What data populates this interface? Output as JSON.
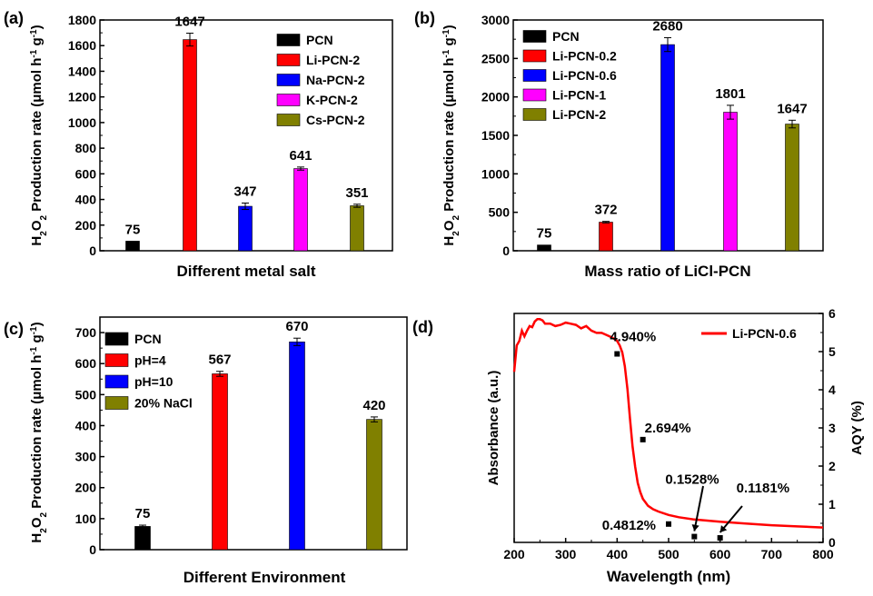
{
  "colors": {
    "black": "#000000",
    "red": "#ff0000",
    "blue": "#0000ff",
    "magenta": "#ff00ff",
    "olive": "#808000",
    "line": "#ff0000"
  },
  "chart_data": [
    {
      "panel": "(a)",
      "type": "bar",
      "title": "",
      "xlabel": "Different metal salt",
      "ylabel_parts": [
        "H",
        "2",
        "O",
        "2",
        " Production rate (μmol h",
        "-1",
        " g",
        "-1",
        ")"
      ],
      "ylim": [
        0,
        1800
      ],
      "yticks": [
        0,
        200,
        400,
        600,
        800,
        1000,
        1200,
        1400,
        1600,
        1800
      ],
      "categories": [
        "PCN",
        "Li-PCN-2",
        "Na-PCN-2",
        "K-PCN-2",
        "Cs-PCN-2"
      ],
      "values": [
        75,
        1647,
        347,
        641,
        351
      ],
      "errors": [
        0,
        50,
        25,
        12,
        12
      ],
      "value_labels": [
        "75",
        "1647",
        "347",
        "641",
        "351"
      ],
      "colors": [
        "#000000",
        "#ff0000",
        "#0000ff",
        "#ff00ff",
        "#808000"
      ],
      "legend": [
        "PCN",
        "Li-PCN-2",
        "Na-PCN-2",
        "K-PCN-2",
        "Cs-PCN-2"
      ],
      "legend_position": "top-right"
    },
    {
      "panel": "(b)",
      "type": "bar",
      "title": "",
      "xlabel": "Mass ratio of LiCl-PCN",
      "ylabel_parts": [
        "H",
        "2",
        "O",
        "2",
        " Production rate (μmol h",
        "-1",
        " g",
        "-1",
        ")"
      ],
      "ylim": [
        0,
        3000
      ],
      "yticks": [
        0,
        500,
        1000,
        1500,
        2000,
        2500,
        3000
      ],
      "categories": [
        "PCN",
        "Li-PCN-0.2",
        "Li-PCN-0.6",
        "Li-PCN-1",
        "Li-PCN-2"
      ],
      "values": [
        75,
        372,
        2680,
        1801,
        1647
      ],
      "errors": [
        0,
        10,
        90,
        90,
        50
      ],
      "value_labels": [
        "75",
        "372",
        "2680",
        "1801",
        "1647"
      ],
      "colors": [
        "#000000",
        "#ff0000",
        "#0000ff",
        "#ff00ff",
        "#808000"
      ],
      "legend": [
        "PCN",
        "Li-PCN-0.2",
        "Li-PCN-0.6",
        "Li-PCN-1",
        "Li-PCN-2"
      ],
      "legend_position": "top-left"
    },
    {
      "panel": "(c)",
      "type": "bar",
      "title": "",
      "xlabel": "Different Environment",
      "ylabel_parts": [
        "H",
        "2",
        "O",
        "2",
        " Production rate (μmol h",
        "-1",
        " g",
        "-1",
        ")"
      ],
      "ylim": [
        0,
        750
      ],
      "yticks": [
        0,
        100,
        200,
        300,
        400,
        500,
        600,
        700
      ],
      "categories": [
        "PCN",
        "pH=4",
        "pH=10",
        "20% NaCl"
      ],
      "values": [
        75,
        567,
        670,
        420
      ],
      "errors": [
        4,
        8,
        12,
        8
      ],
      "value_labels": [
        "75",
        "567",
        "670",
        "420"
      ],
      "colors": [
        "#000000",
        "#ff0000",
        "#0000ff",
        "#808000"
      ],
      "legend": [
        "PCN",
        "pH=4",
        "pH=10",
        "20% NaCl"
      ],
      "legend_position": "top-left"
    },
    {
      "panel": "(d)",
      "type": "line",
      "title": "",
      "xlabel": "Wavelength (nm)",
      "ylabel_left": "Absorbance (a.u.)",
      "ylabel_right": "AQY (%)",
      "xlim": [
        200,
        800
      ],
      "xticks": [
        200,
        300,
        400,
        500,
        600,
        700,
        800
      ],
      "ylim_right": [
        0,
        6
      ],
      "yticks_right": [
        0,
        1,
        2,
        3,
        4,
        5,
        6
      ],
      "series": [
        {
          "name": "Li-PCN-0.6",
          "axis": "left",
          "x": [
            200,
            205,
            210,
            215,
            220,
            225,
            230,
            235,
            240,
            245,
            250,
            255,
            260,
            270,
            280,
            290,
            300,
            310,
            320,
            330,
            340,
            350,
            360,
            370,
            380,
            390,
            400,
            405,
            410,
            415,
            420,
            425,
            430,
            435,
            440,
            445,
            450,
            455,
            460,
            470,
            480,
            500,
            520,
            550,
            600,
            650,
            700,
            750,
            800
          ],
          "y": [
            0.745,
            0.86,
            0.88,
            0.925,
            0.9,
            0.925,
            0.945,
            0.94,
            0.965,
            0.975,
            0.975,
            0.97,
            0.955,
            0.955,
            0.945,
            0.95,
            0.96,
            0.955,
            0.95,
            0.935,
            0.945,
            0.925,
            0.915,
            0.915,
            0.905,
            0.895,
            0.88,
            0.86,
            0.83,
            0.77,
            0.67,
            0.54,
            0.42,
            0.33,
            0.26,
            0.22,
            0.19,
            0.175,
            0.16,
            0.145,
            0.135,
            0.12,
            0.11,
            0.1,
            0.09,
            0.082,
            0.075,
            0.07,
            0.065
          ]
        },
        {
          "name": "AQY",
          "axis": "right",
          "type": "scatter",
          "x": [
            400,
            450,
            500,
            550,
            600
          ],
          "y": [
            4.94,
            2.694,
            0.4812,
            0.1528,
            0.1181
          ],
          "labels": [
            "4.940%",
            "2.694%",
            "0.4812%",
            "0.1528%",
            "0.1181%"
          ]
        }
      ],
      "legend": [
        "Li-PCN-0.6"
      ],
      "legend_position": "top-right"
    }
  ]
}
